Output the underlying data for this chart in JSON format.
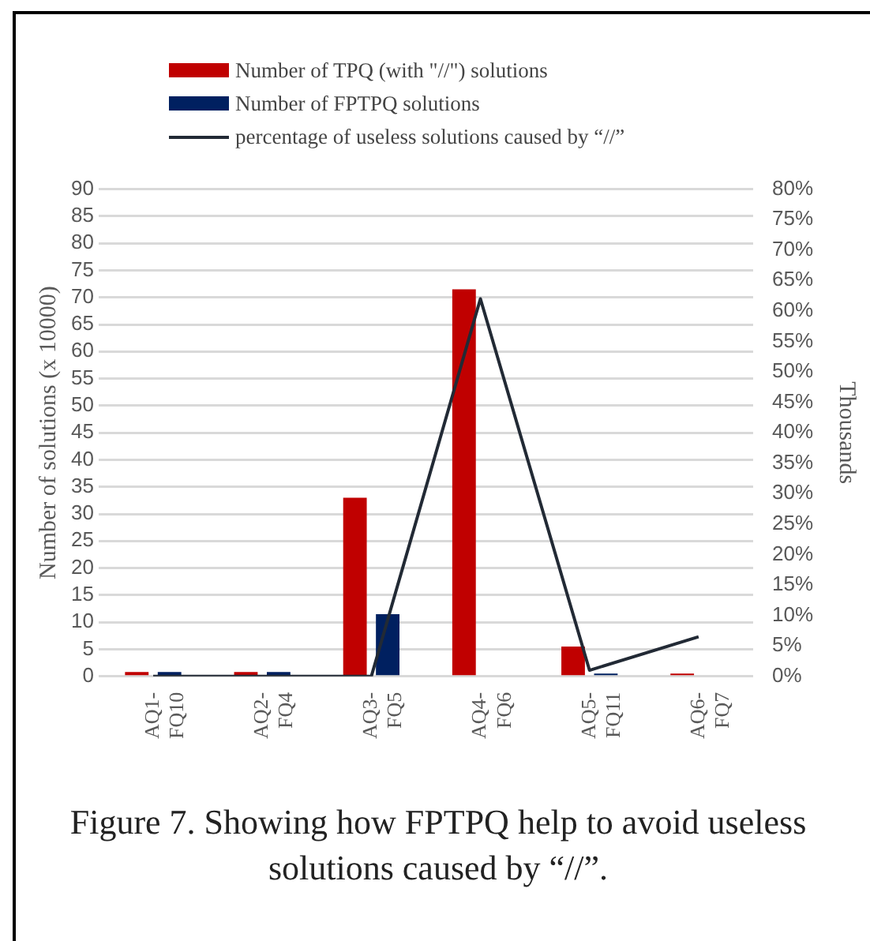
{
  "chart_data": {
    "type": "bar",
    "categories": [
      "AQ1-FQ10",
      "AQ2-FQ4",
      "AQ3-FQ5",
      "AQ4-FQ6",
      "AQ5-FQ11",
      "AQ6-FQ7"
    ],
    "series": [
      {
        "name": "Number of TPQ (with \"//\") solutions",
        "color": "#c00000",
        "values": [
          0.8,
          0.8,
          33,
          71.5,
          5.5,
          0.5
        ]
      },
      {
        "name": "Number of FPTPQ solutions",
        "color": "#002060",
        "values": [
          0.8,
          0.8,
          11.5,
          0,
          0.5,
          0
        ]
      },
      {
        "name": "percentage of useless solutions caused by “//”",
        "type": "line",
        "axis": "y2",
        "color": "#222a35",
        "values": [
          0,
          0,
          0,
          62,
          1,
          6.5
        ]
      }
    ],
    "ylabel": "Number of solutions (x 10000)",
    "y2label": "Thousands",
    "ylim": [
      0,
      90
    ],
    "yticks": [
      0,
      5,
      10,
      15,
      20,
      25,
      30,
      35,
      40,
      45,
      50,
      55,
      60,
      65,
      70,
      75,
      80,
      85,
      90
    ],
    "y2lim": [
      0,
      80
    ],
    "y2ticks": [
      {
        "value": 0,
        "label": "0%"
      },
      {
        "value": 5,
        "label": "5%"
      },
      {
        "value": 10,
        "label": "10%"
      },
      {
        "value": 15,
        "label": "15%"
      },
      {
        "value": 20,
        "label": "20%"
      },
      {
        "value": 25,
        "label": "25%"
      },
      {
        "value": 30,
        "label": "30%"
      },
      {
        "value": 35,
        "label": "35%"
      },
      {
        "value": 40,
        "label": "40%"
      },
      {
        "value": 45,
        "label": "45%"
      },
      {
        "value": 50,
        "label": "50%"
      },
      {
        "value": 55,
        "label": "55%"
      },
      {
        "value": 60,
        "label": "60%"
      },
      {
        "value": 65,
        "label": "65%"
      },
      {
        "value": 70,
        "label": "70%"
      },
      {
        "value": 75,
        "label": "75%"
      },
      {
        "value": 80,
        "label": "80%"
      }
    ],
    "grid": "y",
    "legend": "top",
    "marker": "none",
    "annotations": [
      "Figure 7. Showing how FPTPQ help to avoid useless solutions caused by “//”."
    ]
  }
}
